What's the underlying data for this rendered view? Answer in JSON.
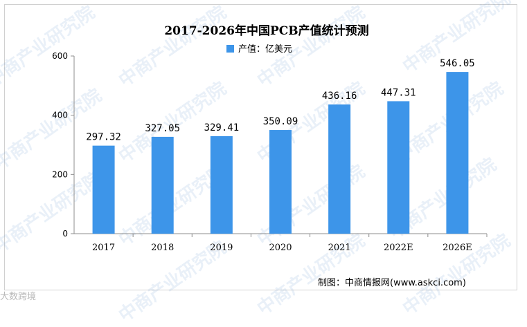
{
  "chart_data": {
    "type": "bar",
    "title": "2017-2026年中国PCB产值统计预测",
    "categories": [
      "2017",
      "2018",
      "2019",
      "2020",
      "2021",
      "2022E",
      "2026E"
    ],
    "series": [
      {
        "name": "产值：亿美元",
        "values": [
          297.32,
          327.05,
          329.41,
          350.09,
          436.16,
          447.31,
          546.05
        ]
      }
    ],
    "data_labels": [
      "297.32",
      "327.05",
      "329.41",
      "350.09",
      "436.16",
      "447.31",
      "546.05"
    ],
    "yticks": [
      "0",
      "200",
      "400",
      "600"
    ],
    "ylim": [
      0,
      600
    ],
    "xlabel": "",
    "ylabel": "",
    "grid": false,
    "legend_position": "top",
    "bar_color": "#3d95e9",
    "axis_color": "#8c8c8c"
  },
  "source": "制图：中商情报网(www.askci.com)",
  "watermark": "中商产业研究院",
  "corner_mark": "大数跨境"
}
